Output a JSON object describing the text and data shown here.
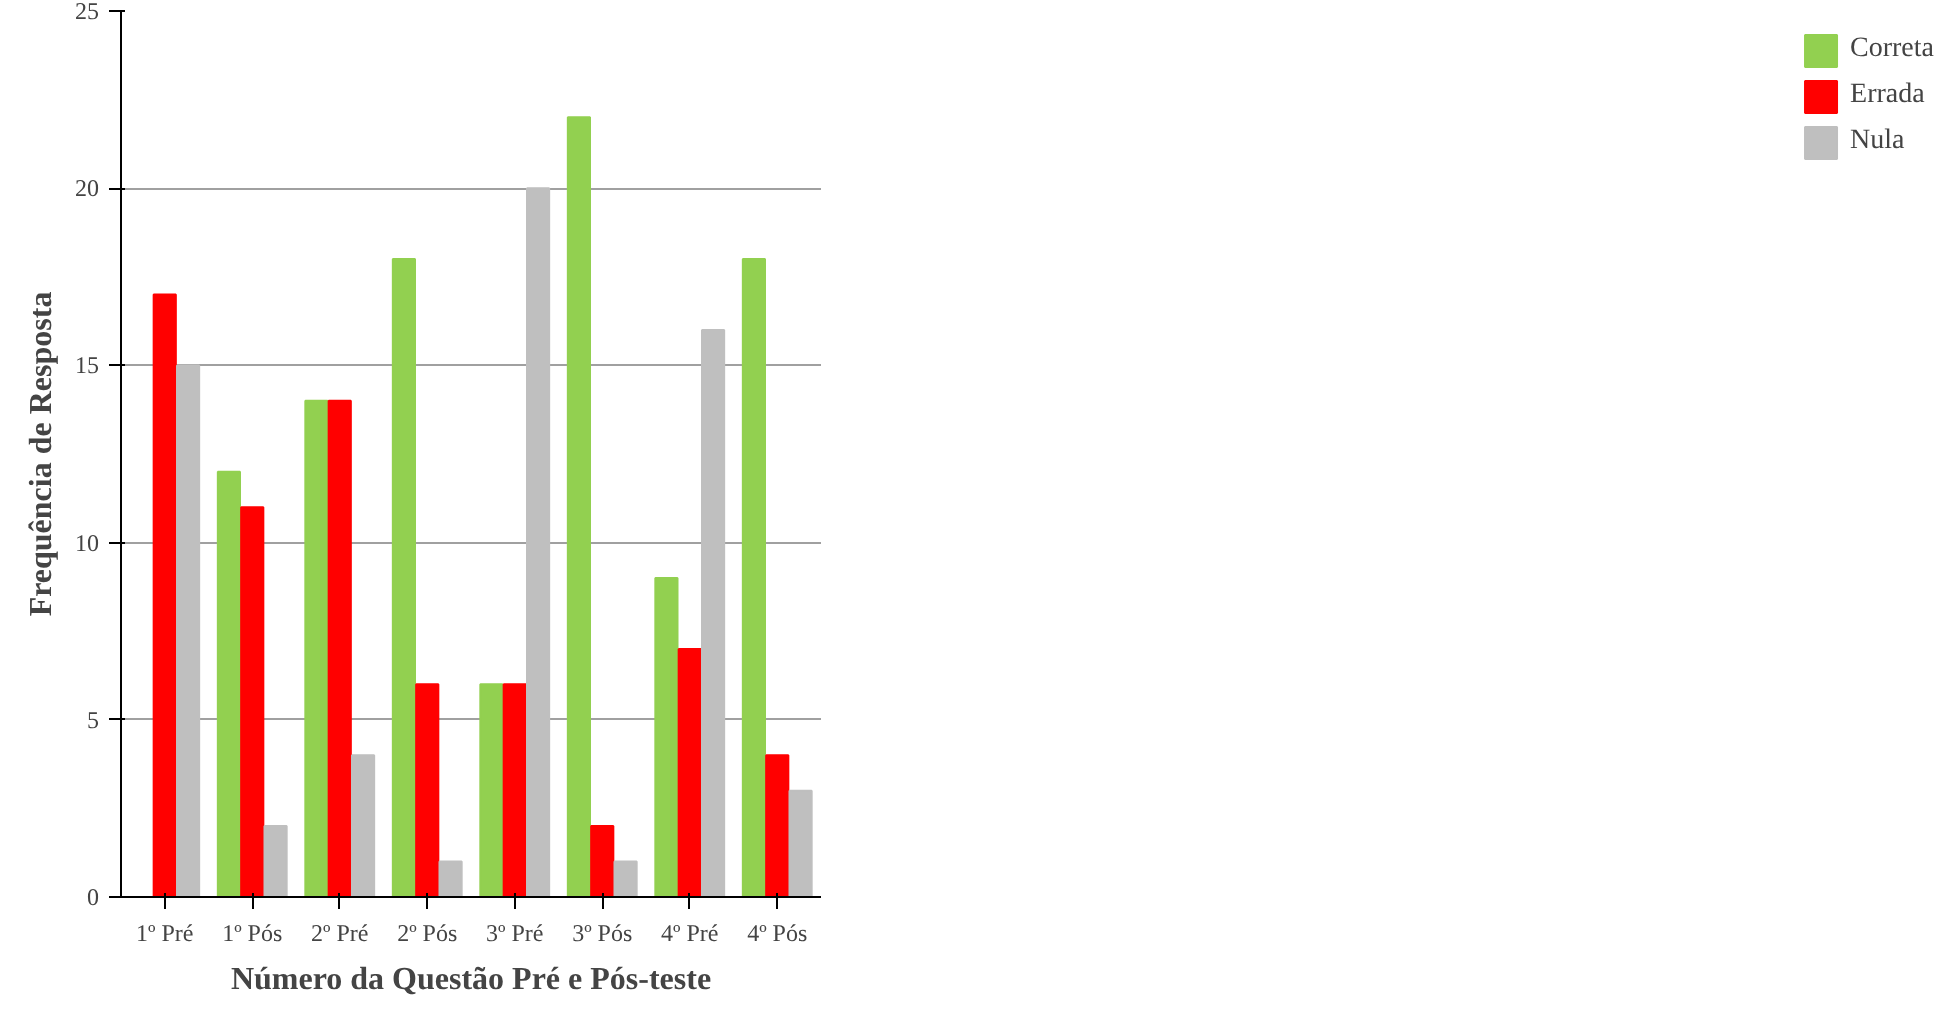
{
  "chart_data": {
    "type": "bar",
    "xlabel": "Número da Questão Pré e Pós-teste",
    "ylabel": "Frequência de Resposta",
    "categories": [
      "1º Pré",
      "1º Pós",
      "2º Pré",
      "2º Pós",
      "3º Pré",
      "3º Pós",
      "4º Pré",
      "4º Pós"
    ],
    "series": [
      {
        "name": "Correta",
        "color": "#92d050",
        "values": [
          0,
          12,
          14,
          18,
          6,
          22,
          9,
          18
        ]
      },
      {
        "name": "Errada",
        "color": "#ff0000",
        "values": [
          17,
          11,
          14,
          6,
          6,
          2,
          7,
          4
        ]
      },
      {
        "name": "Nula",
        "color": "#bfbfbf",
        "values": [
          15,
          2,
          4,
          1,
          20,
          1,
          16,
          3
        ]
      }
    ],
    "ylim": [
      0,
      25
    ],
    "yticks": [
      0,
      5,
      10,
      15,
      20,
      25
    ],
    "grid": "y",
    "legend": "right"
  }
}
